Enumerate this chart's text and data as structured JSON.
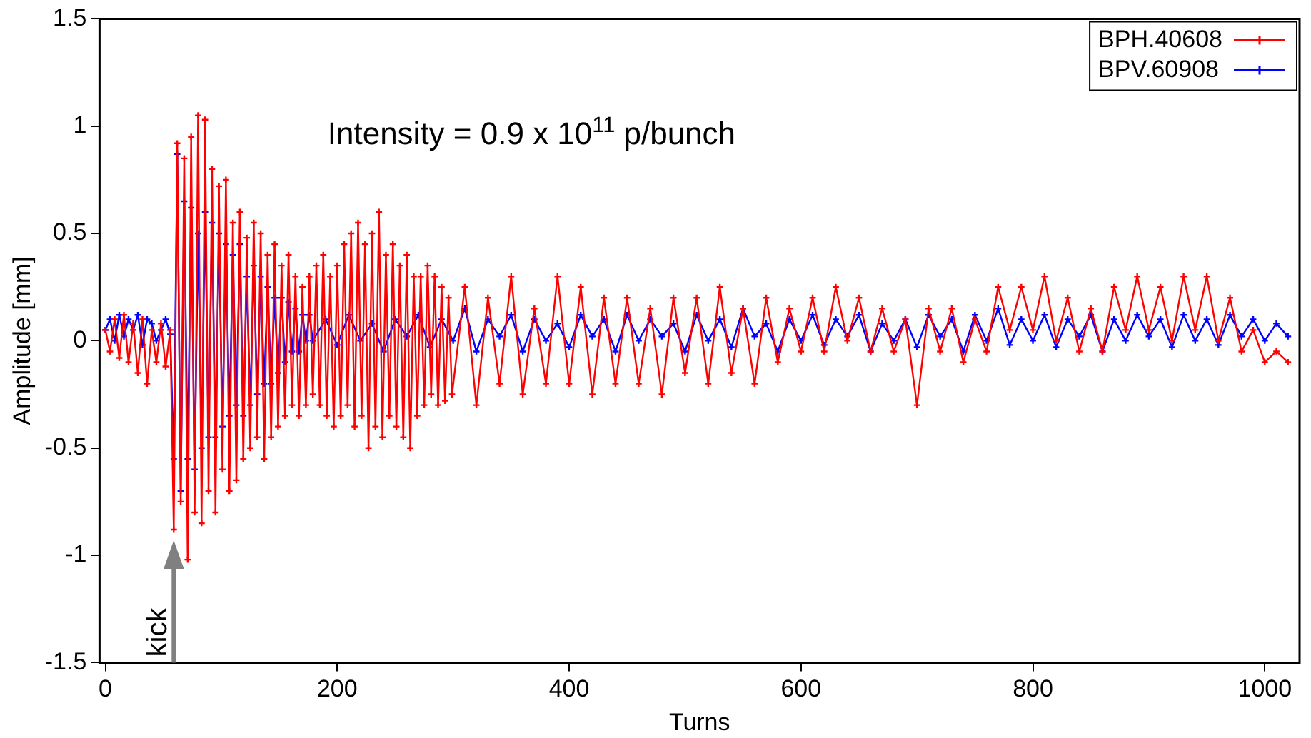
{
  "chart_data": {
    "type": "line",
    "xlabel": "Turns",
    "ylabel": "Amplitude [mm]",
    "xlim": [
      -5,
      1030
    ],
    "xticks": [
      0,
      200,
      400,
      600,
      800,
      1000
    ],
    "ylim": [
      -1.5,
      1.5
    ],
    "yticks": [
      -1.5,
      -1,
      -0.5,
      0,
      0.5,
      1,
      1.5
    ],
    "grid": false,
    "legend": "top right",
    "marker": "cross",
    "line_style": "solid",
    "annotations": [
      "Intensity = 0.9 x 10$^{11}$ p/bunch"
    ],
    "ref_lines": [
      {
        "axis": "x",
        "value": 59,
        "label": "kick",
        "color": "#808080"
      }
    ],
    "series": [
      {
        "name": "BPH.40608",
        "color": "#ff0000",
        "x": [
          0,
          4,
          8,
          12,
          16,
          20,
          24,
          28,
          32,
          36,
          40,
          44,
          48,
          52,
          56,
          59,
          62,
          65,
          68,
          71,
          74,
          77,
          80,
          83,
          86,
          89,
          92,
          95,
          98,
          101,
          104,
          107,
          110,
          113,
          116,
          119,
          122,
          125,
          128,
          131,
          134,
          137,
          140,
          143,
          146,
          149,
          152,
          155,
          158,
          161,
          164,
          167,
          170,
          173,
          176,
          179,
          182,
          185,
          188,
          191,
          194,
          197,
          200,
          203,
          206,
          209,
          212,
          215,
          218,
          221,
          224,
          227,
          230,
          233,
          236,
          239,
          242,
          245,
          248,
          251,
          254,
          257,
          260,
          263,
          266,
          269,
          272,
          275,
          278,
          281,
          284,
          287,
          290,
          293,
          296,
          299,
          310,
          320,
          330,
          340,
          350,
          360,
          370,
          380,
          390,
          400,
          410,
          420,
          430,
          440,
          450,
          460,
          470,
          480,
          490,
          500,
          510,
          520,
          530,
          540,
          550,
          560,
          570,
          580,
          590,
          600,
          610,
          620,
          630,
          640,
          650,
          660,
          670,
          680,
          690,
          700,
          710,
          720,
          730,
          740,
          750,
          760,
          770,
          780,
          790,
          800,
          810,
          820,
          830,
          840,
          850,
          860,
          870,
          880,
          890,
          900,
          910,
          920,
          930,
          940,
          950,
          960,
          970,
          980,
          990,
          1000,
          1010,
          1020
        ],
        "values": [
          0.05,
          -0.05,
          0.1,
          -0.08,
          0.12,
          -0.1,
          0.08,
          -0.15,
          0.1,
          -0.2,
          0.05,
          -0.1,
          0.08,
          -0.12,
          0.05,
          -0.88,
          0.92,
          -0.75,
          0.85,
          -1.02,
          0.95,
          -0.8,
          1.05,
          -0.85,
          1.03,
          -0.7,
          0.8,
          -0.8,
          0.72,
          -0.6,
          0.75,
          -0.7,
          0.55,
          -0.65,
          0.6,
          -0.55,
          0.48,
          -0.5,
          0.55,
          -0.45,
          0.5,
          -0.55,
          0.4,
          -0.45,
          0.45,
          -0.4,
          0.35,
          -0.35,
          0.4,
          -0.3,
          0.3,
          -0.35,
          0.25,
          -0.3,
          0.3,
          -0.25,
          0.35,
          -0.3,
          0.4,
          -0.35,
          0.3,
          -0.4,
          0.35,
          -0.35,
          0.45,
          -0.3,
          0.5,
          -0.4,
          0.55,
          -0.35,
          0.45,
          -0.5,
          0.5,
          -0.4,
          0.6,
          -0.45,
          0.4,
          -0.35,
          0.45,
          -0.4,
          0.35,
          -0.45,
          0.4,
          -0.5,
          0.3,
          -0.35,
          0.3,
          -0.3,
          0.35,
          -0.25,
          0.3,
          -0.3,
          0.25,
          -0.28,
          0.2,
          -0.25,
          0.25,
          -0.3,
          0.2,
          -0.2,
          0.3,
          -0.25,
          0.15,
          -0.2,
          0.3,
          -0.2,
          0.25,
          -0.25,
          0.2,
          -0.2,
          0.2,
          -0.2,
          0.15,
          -0.25,
          0.2,
          -0.15,
          0.2,
          -0.2,
          0.25,
          -0.15,
          0.15,
          -0.2,
          0.2,
          -0.1,
          0.15,
          -0.05,
          0.2,
          -0.05,
          0.25,
          0,
          0.2,
          -0.05,
          0.15,
          -0.05,
          0.1,
          -0.3,
          0.15,
          -0.05,
          0.15,
          -0.1,
          0.1,
          -0.05,
          0.25,
          0.05,
          0.25,
          0.05,
          0.3,
          0,
          0.2,
          -0.05,
          0.15,
          -0.05,
          0.25,
          0.05,
          0.3,
          0.05,
          0.25,
          0,
          0.3,
          0.05,
          0.3,
          0,
          0.2,
          -0.05,
          0.05,
          -0.1,
          -0.05,
          -0.1
        ]
      },
      {
        "name": "BPV.60908",
        "color": "#0000ff",
        "x": [
          0,
          4,
          8,
          12,
          16,
          20,
          24,
          28,
          32,
          36,
          40,
          44,
          48,
          52,
          56,
          59,
          62,
          65,
          68,
          71,
          74,
          77,
          80,
          83,
          86,
          89,
          92,
          95,
          98,
          101,
          104,
          107,
          110,
          113,
          116,
          119,
          122,
          125,
          128,
          131,
          134,
          137,
          140,
          143,
          146,
          149,
          152,
          155,
          158,
          161,
          164,
          167,
          170,
          173,
          176,
          179,
          190,
          200,
          210,
          220,
          230,
          240,
          250,
          260,
          270,
          280,
          290,
          300,
          310,
          320,
          330,
          340,
          350,
          360,
          370,
          380,
          390,
          400,
          410,
          420,
          430,
          440,
          450,
          460,
          470,
          480,
          490,
          500,
          510,
          520,
          530,
          540,
          550,
          560,
          570,
          580,
          590,
          600,
          610,
          620,
          630,
          640,
          650,
          660,
          670,
          680,
          690,
          700,
          710,
          720,
          730,
          740,
          750,
          760,
          770,
          780,
          790,
          800,
          810,
          820,
          830,
          840,
          850,
          860,
          870,
          880,
          890,
          900,
          910,
          920,
          930,
          940,
          950,
          960,
          970,
          980,
          990,
          1000,
          1010,
          1020
        ],
        "values": [
          0.05,
          0.1,
          0,
          0.12,
          0.02,
          0.1,
          0.05,
          0.12,
          -0.02,
          0.1,
          0.08,
          0,
          0.05,
          0.1,
          0.03,
          -0.55,
          0.87,
          -0.7,
          0.65,
          -0.55,
          0.62,
          -0.6,
          0.5,
          -0.5,
          0.6,
          -0.45,
          0.55,
          -0.45,
          0.5,
          -0.4,
          0.45,
          -0.35,
          0.4,
          -0.3,
          0.45,
          -0.35,
          0.3,
          -0.3,
          0.35,
          -0.25,
          0.3,
          -0.2,
          0.25,
          -0.2,
          0.2,
          -0.15,
          0.2,
          -0.1,
          0.18,
          -0.05,
          0.15,
          -0.05,
          0.12,
          0,
          0.12,
          0,
          0.1,
          -0.02,
          0.12,
          0,
          0.08,
          -0.05,
          0.1,
          0.02,
          0.12,
          -0.03,
          0.1,
          0,
          0.15,
          -0.05,
          0.1,
          0.02,
          0.12,
          -0.05,
          0.1,
          0,
          0.08,
          -0.03,
          0.12,
          0.02,
          0.1,
          -0.05,
          0.12,
          0,
          0.1,
          0.02,
          0.08,
          -0.05,
          0.12,
          0,
          0.1,
          -0.03,
          0.15,
          0.02,
          0.08,
          -0.05,
          0.1,
          0,
          0.12,
          -0.02,
          0.1,
          0.02,
          0.12,
          -0.05,
          0.08,
          0,
          0.1,
          -0.03,
          0.12,
          0.02,
          0.1,
          -0.05,
          0.12,
          0,
          0.15,
          -0.02,
          0.1,
          0,
          0.12,
          -0.03,
          0.1,
          0.02,
          0.12,
          -0.05,
          0.1,
          0,
          0.12,
          0.02,
          0.1,
          -0.03,
          0.12,
          0,
          0.1,
          -0.02,
          0.12,
          0.02,
          0.1,
          0,
          0.08,
          0.02
        ]
      }
    ]
  }
}
